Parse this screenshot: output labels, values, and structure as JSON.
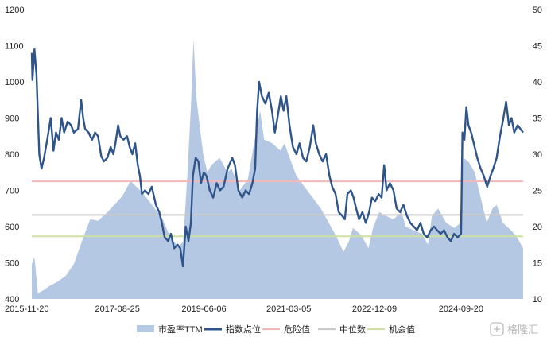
{
  "chart_data": {
    "type": "line",
    "x_ticks": [
      "2015-11-20",
      "2017-08-25",
      "2019-06-06",
      "2021-03-05",
      "2022-12-09",
      "2024-09-20"
    ],
    "y_left": {
      "ticks": [
        400,
        500,
        600,
        700,
        800,
        900,
        1000,
        1100,
        1200
      ],
      "range": [
        400,
        1200
      ]
    },
    "y_right": {
      "ticks": [
        10,
        15,
        20,
        25,
        30,
        35,
        40,
        45,
        50
      ],
      "range": [
        10,
        50
      ]
    },
    "x_range": [
      "2015-11-20",
      "2025-12-31"
    ],
    "grid": false,
    "legend_placement": "bottom",
    "series": [
      {
        "name": "市盈率TTM",
        "kind": "area",
        "axis": "right",
        "color": "#b4c8e4",
        "points": [
          [
            "2015-11-20",
            14.8
          ],
          [
            "2015-12-10",
            15.8
          ],
          [
            "2016-01-05",
            10.8
          ],
          [
            "2016-02-15",
            11.2
          ],
          [
            "2016-04-01",
            11.8
          ],
          [
            "2016-06-01",
            12.4
          ],
          [
            "2016-08-01",
            13.2
          ],
          [
            "2016-10-01",
            14.8
          ],
          [
            "2016-12-01",
            18.0
          ],
          [
            "2017-02-01",
            21.0
          ],
          [
            "2017-04-01",
            20.8
          ],
          [
            "2017-06-01",
            21.8
          ],
          [
            "2017-08-01",
            23.0
          ],
          [
            "2017-10-01",
            24.2
          ],
          [
            "2017-12-01",
            26.3
          ],
          [
            "2018-02-01",
            25.2
          ],
          [
            "2018-04-01",
            24.0
          ],
          [
            "2018-06-01",
            22.5
          ],
          [
            "2018-08-01",
            21.0
          ],
          [
            "2018-10-01",
            18.3
          ],
          [
            "2018-12-01",
            17.2
          ],
          [
            "2019-01-01",
            18.0
          ],
          [
            "2019-02-01",
            27.0
          ],
          [
            "2019-03-01",
            37.0
          ],
          [
            "2019-03-20",
            46.0
          ],
          [
            "2019-04-10",
            38.0
          ],
          [
            "2019-05-01",
            34.5
          ],
          [
            "2019-06-01",
            30.0
          ],
          [
            "2019-07-01",
            27.5
          ],
          [
            "2019-08-01",
            28.5
          ],
          [
            "2019-10-01",
            29.5
          ],
          [
            "2019-12-01",
            27.5
          ],
          [
            "2020-01-01",
            28.0
          ],
          [
            "2020-03-01",
            25.0
          ],
          [
            "2020-05-01",
            26.5
          ],
          [
            "2020-07-01",
            33.0
          ],
          [
            "2020-08-01",
            36.0
          ],
          [
            "2020-09-01",
            32.0
          ],
          [
            "2020-11-01",
            31.5
          ],
          [
            "2021-01-01",
            30.5
          ],
          [
            "2021-02-01",
            31.5
          ],
          [
            "2021-03-01",
            30.0
          ],
          [
            "2021-05-01",
            27.0
          ],
          [
            "2021-07-01",
            25.5
          ],
          [
            "2021-09-01",
            24.0
          ],
          [
            "2021-11-01",
            22.5
          ],
          [
            "2022-01-01",
            20.5
          ],
          [
            "2022-03-01",
            18.5
          ],
          [
            "2022-04-20",
            16.5
          ],
          [
            "2022-06-01",
            18.0
          ],
          [
            "2022-07-01",
            19.8
          ],
          [
            "2022-09-01",
            18.8
          ],
          [
            "2022-10-25",
            17.0
          ],
          [
            "2022-12-01",
            20.0
          ],
          [
            "2023-01-15",
            22.0
          ],
          [
            "2023-03-01",
            21.5
          ],
          [
            "2023-05-01",
            21.0
          ],
          [
            "2023-07-01",
            22.0
          ],
          [
            "2023-08-01",
            20.0
          ],
          [
            "2023-10-01",
            19.5
          ],
          [
            "2023-12-01",
            19.0
          ],
          [
            "2024-01-15",
            17.5
          ],
          [
            "2024-02-15",
            21.5
          ],
          [
            "2024-04-01",
            22.5
          ],
          [
            "2024-06-01",
            20.5
          ],
          [
            "2024-08-01",
            19.8
          ],
          [
            "2024-09-15",
            20.5
          ],
          [
            "2024-10-08",
            29.5
          ],
          [
            "2024-11-15",
            29.0
          ],
          [
            "2025-01-01",
            27.5
          ],
          [
            "2025-02-15",
            24.0
          ],
          [
            "2025-04-01",
            20.5
          ],
          [
            "2025-05-15",
            22.5
          ],
          [
            "2025-06-15",
            23.0
          ],
          [
            "2025-08-01",
            20.5
          ],
          [
            "2025-10-01",
            19.5
          ],
          [
            "2025-11-15",
            18.5
          ],
          [
            "2025-12-31",
            17.0
          ]
        ]
      },
      {
        "name": "指数点位",
        "kind": "line",
        "axis": "left",
        "color": "#2e548a",
        "points": [
          [
            "2015-11-20",
            1080
          ],
          [
            "2015-11-25",
            1005
          ],
          [
            "2015-12-10",
            1090
          ],
          [
            "2015-12-25",
            1020
          ],
          [
            "2016-01-15",
            800
          ],
          [
            "2016-02-01",
            760
          ],
          [
            "2016-02-20",
            790
          ],
          [
            "2016-03-15",
            840
          ],
          [
            "2016-04-10",
            900
          ],
          [
            "2016-05-01",
            810
          ],
          [
            "2016-05-20",
            860
          ],
          [
            "2016-06-10",
            840
          ],
          [
            "2016-07-01",
            900
          ],
          [
            "2016-07-20",
            860
          ],
          [
            "2016-08-15",
            890
          ],
          [
            "2016-09-10",
            880
          ],
          [
            "2016-10-01",
            860
          ],
          [
            "2016-11-01",
            870
          ],
          [
            "2016-11-25",
            950
          ],
          [
            "2016-12-10",
            900
          ],
          [
            "2016-12-25",
            870
          ],
          [
            "2017-01-20",
            860
          ],
          [
            "2017-02-15",
            840
          ],
          [
            "2017-03-10",
            860
          ],
          [
            "2017-04-01",
            850
          ],
          [
            "2017-04-25",
            795
          ],
          [
            "2017-05-15",
            780
          ],
          [
            "2017-06-10",
            790
          ],
          [
            "2017-07-05",
            820
          ],
          [
            "2017-07-25",
            800
          ],
          [
            "2017-08-10",
            830
          ],
          [
            "2017-08-30",
            880
          ],
          [
            "2017-09-15",
            850
          ],
          [
            "2017-10-10",
            840
          ],
          [
            "2017-11-05",
            850
          ],
          [
            "2017-11-25",
            820
          ],
          [
            "2017-12-15",
            800
          ],
          [
            "2018-01-05",
            830
          ],
          [
            "2018-01-25",
            770
          ],
          [
            "2018-02-10",
            740
          ],
          [
            "2018-02-25",
            690
          ],
          [
            "2018-03-20",
            700
          ],
          [
            "2018-04-15",
            690
          ],
          [
            "2018-05-10",
            710
          ],
          [
            "2018-06-10",
            660
          ],
          [
            "2018-07-05",
            640
          ],
          [
            "2018-07-25",
            610
          ],
          [
            "2018-08-15",
            570
          ],
          [
            "2018-09-10",
            560
          ],
          [
            "2018-10-01",
            580
          ],
          [
            "2018-10-25",
            540
          ],
          [
            "2018-11-20",
            550
          ],
          [
            "2018-12-10",
            540
          ],
          [
            "2018-12-30",
            490
          ],
          [
            "2019-01-20",
            600
          ],
          [
            "2019-02-10",
            560
          ],
          [
            "2019-02-28",
            610
          ],
          [
            "2019-03-15",
            740
          ],
          [
            "2019-04-05",
            790
          ],
          [
            "2019-04-25",
            780
          ],
          [
            "2019-05-15",
            720
          ],
          [
            "2019-06-05",
            750
          ],
          [
            "2019-06-25",
            740
          ],
          [
            "2019-07-20",
            700
          ],
          [
            "2019-08-15",
            680
          ],
          [
            "2019-09-10",
            720
          ],
          [
            "2019-10-05",
            700
          ],
          [
            "2019-11-01",
            710
          ],
          [
            "2019-12-01",
            760
          ],
          [
            "2020-01-05",
            790
          ],
          [
            "2020-01-25",
            770
          ],
          [
            "2020-02-20",
            700
          ],
          [
            "2020-03-20",
            680
          ],
          [
            "2020-04-15",
            700
          ],
          [
            "2020-05-10",
            690
          ],
          [
            "2020-06-05",
            720
          ],
          [
            "2020-06-25",
            760
          ],
          [
            "2020-07-10",
            920
          ],
          [
            "2020-07-25",
            1000
          ],
          [
            "2020-08-15",
            960
          ],
          [
            "2020-09-10",
            940
          ],
          [
            "2020-10-05",
            970
          ],
          [
            "2020-10-30",
            920
          ],
          [
            "2020-11-20",
            860
          ],
          [
            "2020-12-10",
            900
          ],
          [
            "2021-01-05",
            960
          ],
          [
            "2021-01-25",
            920
          ],
          [
            "2021-02-15",
            960
          ],
          [
            "2021-03-10",
            880
          ],
          [
            "2021-04-05",
            820
          ],
          [
            "2021-05-01",
            800
          ],
          [
            "2021-05-25",
            830
          ],
          [
            "2021-06-20",
            790
          ],
          [
            "2021-07-15",
            780
          ],
          [
            "2021-08-10",
            820
          ],
          [
            "2021-09-05",
            880
          ],
          [
            "2021-09-25",
            830
          ],
          [
            "2021-10-20",
            800
          ],
          [
            "2021-11-15",
            780
          ],
          [
            "2021-12-10",
            800
          ],
          [
            "2022-01-05",
            740
          ],
          [
            "2022-01-25",
            710
          ],
          [
            "2022-02-20",
            690
          ],
          [
            "2022-03-15",
            640
          ],
          [
            "2022-04-10",
            630
          ],
          [
            "2022-04-30",
            620
          ],
          [
            "2022-05-20",
            690
          ],
          [
            "2022-06-15",
            700
          ],
          [
            "2022-07-05",
            680
          ],
          [
            "2022-07-25",
            650
          ],
          [
            "2022-08-15",
            620
          ],
          [
            "2022-09-10",
            640
          ],
          [
            "2022-10-05",
            610
          ],
          [
            "2022-10-30",
            640
          ],
          [
            "2022-11-20",
            680
          ],
          [
            "2022-12-15",
            670
          ],
          [
            "2023-01-10",
            690
          ],
          [
            "2023-02-01",
            680
          ],
          [
            "2023-02-20",
            770
          ],
          [
            "2023-03-10",
            700
          ],
          [
            "2023-04-05",
            720
          ],
          [
            "2023-05-01",
            700
          ],
          [
            "2023-05-25",
            650
          ],
          [
            "2023-06-20",
            640
          ],
          [
            "2023-07-15",
            660
          ],
          [
            "2023-08-10",
            630
          ],
          [
            "2023-09-05",
            610
          ],
          [
            "2023-10-01",
            600
          ],
          [
            "2023-10-25",
            590
          ],
          [
            "2023-11-20",
            610
          ],
          [
            "2023-12-15",
            580
          ],
          [
            "2024-01-10",
            570
          ],
          [
            "2024-02-05",
            590
          ],
          [
            "2024-03-01",
            600
          ],
          [
            "2024-03-25",
            590
          ],
          [
            "2024-04-20",
            580
          ],
          [
            "2024-05-15",
            590
          ],
          [
            "2024-06-10",
            570
          ],
          [
            "2024-07-05",
            560
          ],
          [
            "2024-07-30",
            580
          ],
          [
            "2024-08-25",
            570
          ],
          [
            "2024-09-20",
            580
          ],
          [
            "2024-10-01",
            860
          ],
          [
            "2024-10-15",
            840
          ],
          [
            "2024-10-30",
            930
          ],
          [
            "2024-11-15",
            880
          ],
          [
            "2024-12-05",
            860
          ],
          [
            "2024-12-25",
            830
          ],
          [
            "2025-01-20",
            790
          ],
          [
            "2025-02-15",
            760
          ],
          [
            "2025-03-10",
            740
          ],
          [
            "2025-04-05",
            710
          ],
          [
            "2025-04-30",
            740
          ],
          [
            "2025-05-20",
            760
          ],
          [
            "2025-06-15",
            790
          ],
          [
            "2025-07-10",
            850
          ],
          [
            "2025-08-05",
            900
          ],
          [
            "2025-08-25",
            945
          ],
          [
            "2025-09-15",
            880
          ],
          [
            "2025-10-05",
            900
          ],
          [
            "2025-10-25",
            860
          ],
          [
            "2025-11-20",
            880
          ],
          [
            "2025-12-31",
            860
          ]
        ]
      },
      {
        "name": "危险值",
        "kind": "hline",
        "axis": "left",
        "value": 725,
        "color": "#f2b8b8"
      },
      {
        "name": "中位数",
        "kind": "hline",
        "axis": "left",
        "value": 632,
        "color": "#c9c9c9"
      },
      {
        "name": "机会值",
        "kind": "hline",
        "axis": "left",
        "value": 573,
        "color": "#cfe0a4"
      }
    ]
  },
  "watermark": {
    "text": "格隆汇"
  }
}
